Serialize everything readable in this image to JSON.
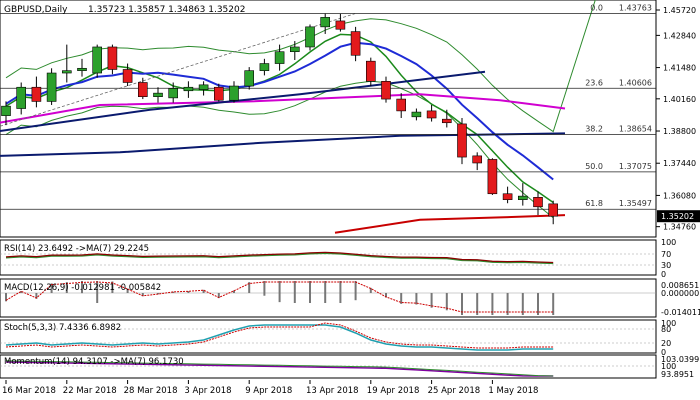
{
  "header": {
    "symbol": "GBPUSD,Daily",
    "ohlc": "1.35723 1.35857 1.34863 1.35202"
  },
  "colors": {
    "bull": "#2ca02c",
    "bear": "#e31a1c",
    "ema_blue": "#1e2bd6",
    "ma_navy": "#0a1a6e",
    "ma_magenta": "#d000d0",
    "ma_green": "#1b8a1b",
    "ma_red": "#c80000",
    "bb": "#2e8b2e",
    "grid_line": "#202020",
    "current_price_bg": "#000000"
  },
  "chart_data": [
    {
      "type": "candlestick",
      "ylim": [
        1.3445,
        1.4425
      ],
      "x": [
        "16 Mar 2018",
        "19 Mar 2018",
        "20 Mar 2018",
        "21 Mar 2018",
        "22 Mar 2018",
        "23 Mar 2018",
        "26 Mar 2018",
        "27 Mar 2018",
        "28 Mar 2018",
        "29 Mar 2018",
        "30 Mar 2018",
        "2 Apr 2018",
        "3 Apr 2018",
        "4 Apr 2018",
        "5 Apr 2018",
        "6 Apr 2018",
        "9 Apr 2018",
        "10 Apr 2018",
        "11 Apr 2018",
        "12 Apr 2018",
        "13 Apr 2018",
        "16 Apr 2018",
        "17 Apr 2018",
        "18 Apr 2018",
        "19 Apr 2018",
        "20 Apr 2018",
        "23 Apr 2018",
        "24 Apr 2018",
        "25 Apr 2018",
        "26 Apr 2018",
        "27 Apr 2018",
        "30 Apr 2018",
        "1 May 2018",
        "2 May 2018",
        "3 May 2018",
        "4 May 2018",
        "7 May 2018"
      ],
      "candles": [
        {
          "o": 1.3945,
          "h": 1.4005,
          "l": 1.3905,
          "c": 1.3985
        },
        {
          "o": 1.3975,
          "h": 1.4085,
          "l": 1.395,
          "c": 1.4065
        },
        {
          "o": 1.4065,
          "h": 1.411,
          "l": 1.398,
          "c": 1.4005
        },
        {
          "o": 1.4005,
          "h": 1.4145,
          "l": 1.399,
          "c": 1.4125
        },
        {
          "o": 1.4125,
          "h": 1.4245,
          "l": 1.4085,
          "c": 1.4135
        },
        {
          "o": 1.4135,
          "h": 1.4185,
          "l": 1.411,
          "c": 1.4145
        },
        {
          "o": 1.4125,
          "h": 1.4245,
          "l": 1.4105,
          "c": 1.4235
        },
        {
          "o": 1.4235,
          "h": 1.4245,
          "l": 1.412,
          "c": 1.414
        },
        {
          "o": 1.414,
          "h": 1.4165,
          "l": 1.407,
          "c": 1.4085
        },
        {
          "o": 1.4085,
          "h": 1.4105,
          "l": 1.4015,
          "c": 1.4025
        },
        {
          "o": 1.4025,
          "h": 1.4065,
          "l": 1.4,
          "c": 1.404
        },
        {
          "o": 1.402,
          "h": 1.4085,
          "l": 1.4,
          "c": 1.406
        },
        {
          "o": 1.405,
          "h": 1.409,
          "l": 1.402,
          "c": 1.4065
        },
        {
          "o": 1.4055,
          "h": 1.409,
          "l": 1.403,
          "c": 1.4075
        },
        {
          "o": 1.4065,
          "h": 1.408,
          "l": 1.4005,
          "c": 1.401
        },
        {
          "o": 1.401,
          "h": 1.409,
          "l": 1.4,
          "c": 1.407
        },
        {
          "o": 1.407,
          "h": 1.415,
          "l": 1.4055,
          "c": 1.4135
        },
        {
          "o": 1.4135,
          "h": 1.4185,
          "l": 1.4115,
          "c": 1.4165
        },
        {
          "o": 1.4165,
          "h": 1.4245,
          "l": 1.4135,
          "c": 1.4215
        },
        {
          "o": 1.4215,
          "h": 1.426,
          "l": 1.418,
          "c": 1.4235
        },
        {
          "o": 1.4235,
          "h": 1.433,
          "l": 1.422,
          "c": 1.432
        },
        {
          "o": 1.432,
          "h": 1.4376,
          "l": 1.429,
          "c": 1.436
        },
        {
          "o": 1.4345,
          "h": 1.4375,
          "l": 1.43,
          "c": 1.431
        },
        {
          "o": 1.43,
          "h": 1.432,
          "l": 1.4175,
          "c": 1.42
        },
        {
          "o": 1.4175,
          "h": 1.419,
          "l": 1.407,
          "c": 1.409
        },
        {
          "o": 1.409,
          "h": 1.411,
          "l": 1.4,
          "c": 1.4015
        },
        {
          "o": 1.4015,
          "h": 1.404,
          "l": 1.3935,
          "c": 1.3965
        },
        {
          "o": 1.394,
          "h": 1.3975,
          "l": 1.3925,
          "c": 1.396
        },
        {
          "o": 1.3965,
          "h": 1.399,
          "l": 1.392,
          "c": 1.3935
        },
        {
          "o": 1.393,
          "h": 1.397,
          "l": 1.3895,
          "c": 1.3915
        },
        {
          "o": 1.391,
          "h": 1.3935,
          "l": 1.374,
          "c": 1.377
        },
        {
          "o": 1.3775,
          "h": 1.379,
          "l": 1.3715,
          "c": 1.3745
        },
        {
          "o": 1.376,
          "h": 1.3765,
          "l": 1.361,
          "c": 1.3615
        },
        {
          "o": 1.3615,
          "h": 1.3645,
          "l": 1.3575,
          "c": 1.359
        },
        {
          "o": 1.359,
          "h": 1.366,
          "l": 1.3565,
          "c": 1.3605
        },
        {
          "o": 1.36,
          "h": 1.3625,
          "l": 1.3525,
          "c": 1.356
        },
        {
          "o": 1.35723,
          "h": 1.35857,
          "l": 1.34863,
          "c": 1.35202
        }
      ],
      "fib_levels": [
        {
          "label": "0.0",
          "value": 1.43763
        },
        {
          "label": "23.6",
          "value": 1.40606
        },
        {
          "label": "38.2",
          "value": 1.38654
        },
        {
          "label": "50.0",
          "value": 1.37075
        },
        {
          "label": "61.8",
          "value": 1.35497
        }
      ],
      "price_axis_labels": [
        "1.45720",
        "1.42840",
        "1.41480",
        "1.40160",
        "1.38800",
        "1.37440",
        "1.36080",
        "1.35202",
        "1.34760"
      ],
      "current_price": "1.35202",
      "x_tick_labels": [
        "16 Mar 2018",
        "22 Mar 2018",
        "28 Mar 2018",
        "3 Apr 2018",
        "9 Apr 2018",
        "13 Apr 2018",
        "19 Apr 2018",
        "25 Apr 2018",
        "1 May 2018"
      ]
    },
    {
      "type": "line",
      "panel": "rsi",
      "title": "RSI(14) 23.6492 ->MA(7) 29.2245",
      "axis_labels": [
        "100",
        "70",
        "30",
        "0"
      ]
    },
    {
      "type": "bar",
      "panel": "macd",
      "title": "MACD(12,26,9) -0.012981 -0.005842",
      "axis_labels": [
        "0.008651",
        "0.000000",
        "-0.014011"
      ]
    },
    {
      "type": "line",
      "panel": "stoch",
      "title": "Stoch(5,3,3) 7.4336 6.8982",
      "axis_labels": [
        "100",
        "80",
        "20",
        "0"
      ]
    },
    {
      "type": "line",
      "panel": "momentum",
      "title": "Momentum(14) 94.3107 ->MA(7) 96.1730",
      "axis_labels": [
        "103.0399",
        "100",
        "93.8951"
      ]
    }
  ]
}
